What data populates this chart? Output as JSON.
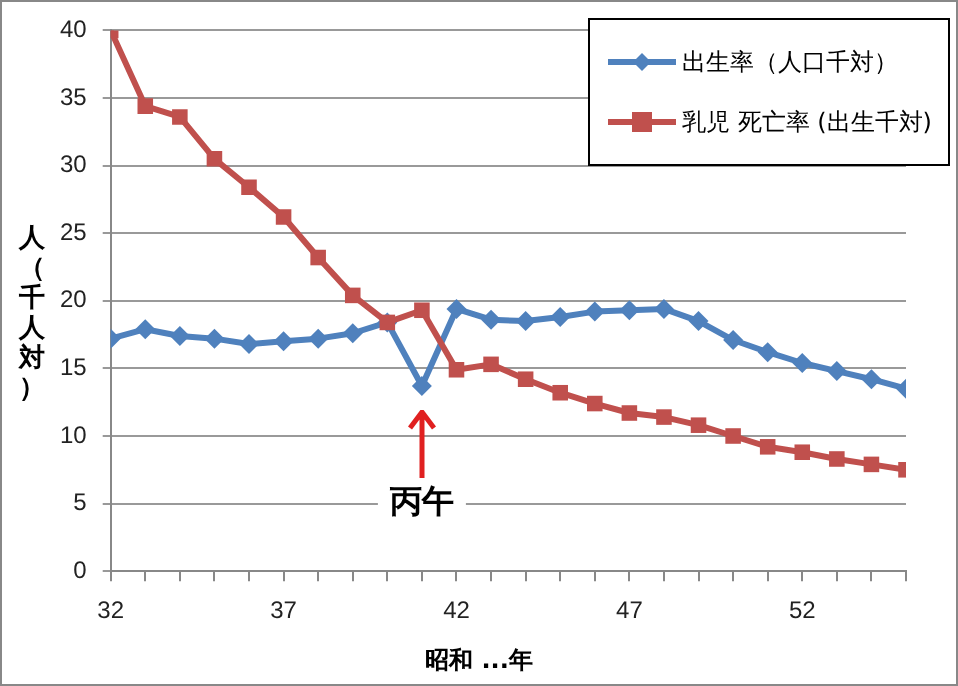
{
  "chart_data": {
    "type": "line",
    "xlabel": "昭和 ...年",
    "ylabel": "人（千人対）",
    "x": [
      32,
      33,
      34,
      35,
      36,
      37,
      38,
      39,
      40,
      41,
      42,
      43,
      44,
      45,
      46,
      47,
      48,
      49,
      50,
      51,
      52,
      53,
      54,
      55
    ],
    "series": [
      {
        "name": "出生率（人口千対）",
        "color": "#4f81bd",
        "marker": "diamond",
        "values": [
          17.2,
          17.9,
          17.4,
          17.2,
          16.8,
          17.0,
          17.2,
          17.6,
          18.4,
          13.7,
          19.4,
          18.6,
          18.5,
          18.8,
          19.2,
          19.3,
          19.4,
          18.5,
          17.1,
          16.2,
          15.4,
          14.8,
          14.2,
          13.5
        ]
      },
      {
        "name": "乳児 死亡率 (出生千対)",
        "color": "#c0504d",
        "marker": "square",
        "values": [
          40,
          34.4,
          33.6,
          30.5,
          28.4,
          26.2,
          23.2,
          20.4,
          18.4,
          19.3,
          14.9,
          15.3,
          14.2,
          13.2,
          12.4,
          11.7,
          11.4,
          10.8,
          10.0,
          9.2,
          8.8,
          8.3,
          7.9,
          7.5
        ]
      }
    ],
    "xlim": [
      32,
      55
    ],
    "xticks": [
      32,
      {
        "value": 33,
        "label": null
      },
      {
        "value": 34,
        "label": null
      },
      {
        "value": 35,
        "label": null
      },
      {
        "value": 36,
        "label": null
      },
      37,
      {
        "value": 38,
        "label": null
      },
      {
        "value": 39,
        "label": null
      },
      {
        "value": 40,
        "label": null
      },
      {
        "value": 41,
        "label": null
      },
      42,
      {
        "value": 43,
        "label": null
      },
      {
        "value": 44,
        "label": null
      },
      {
        "value": 45,
        "label": null
      },
      {
        "value": 46,
        "label": null
      },
      47,
      {
        "value": 48,
        "label": null
      },
      {
        "value": 49,
        "label": null
      },
      {
        "value": 50,
        "label": null
      },
      {
        "value": 51,
        "label": null
      },
      52,
      {
        "value": 53,
        "label": null
      },
      {
        "value": 54,
        "label": null
      },
      {
        "value": 55,
        "label": null
      }
    ],
    "ylim": [
      0,
      40
    ],
    "yticks": [
      0,
      5,
      10,
      15,
      20,
      25,
      30,
      35,
      40
    ],
    "grid": "y",
    "legend": "top right",
    "line_style": "solid",
    "annotations": [
      {
        "text": "丙午",
        "x": 41,
        "y": 5
      }
    ]
  }
}
